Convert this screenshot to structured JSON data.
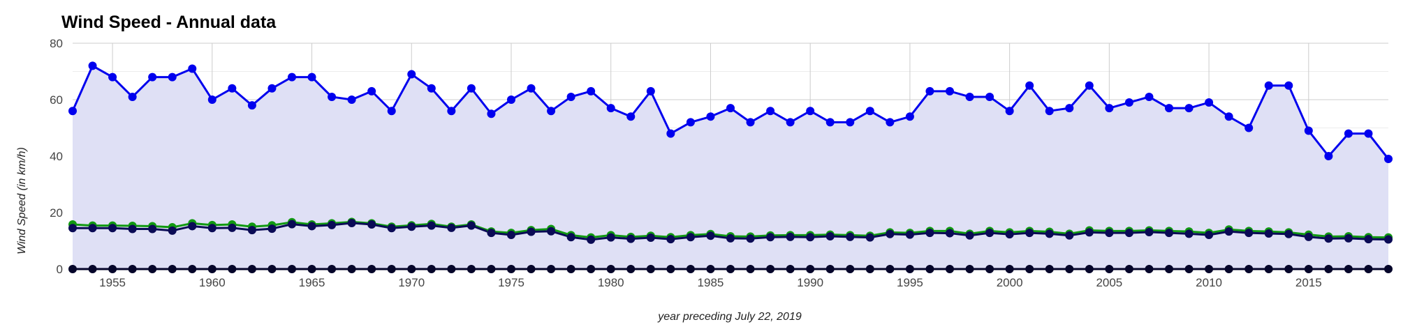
{
  "chart_data": {
    "type": "line",
    "title": "Wind Speed - Annual data",
    "xlabel": "year preceding July 22, 2019",
    "ylabel": "Wind Speed (in km/h)",
    "xlim": [
      1953,
      2019
    ],
    "ylim": [
      0,
      80
    ],
    "x_ticks": [
      "1955",
      "1960",
      "1965",
      "1970",
      "1975",
      "1980",
      "1985",
      "1990",
      "1995",
      "2000",
      "2005",
      "2010",
      "2015"
    ],
    "y_ticks": [
      "0",
      "20",
      "40",
      "60",
      "80"
    ],
    "grid": true,
    "legend": "none",
    "x": [
      1953,
      1954,
      1955,
      1956,
      1957,
      1958,
      1959,
      1960,
      1961,
      1962,
      1963,
      1964,
      1965,
      1966,
      1967,
      1968,
      1969,
      1970,
      1971,
      1972,
      1973,
      1974,
      1975,
      1976,
      1977,
      1978,
      1979,
      1980,
      1981,
      1982,
      1983,
      1984,
      1985,
      1986,
      1987,
      1988,
      1989,
      1990,
      1991,
      1992,
      1993,
      1994,
      1995,
      1996,
      1997,
      1998,
      1999,
      2000,
      2001,
      2002,
      2003,
      2004,
      2005,
      2006,
      2007,
      2008,
      2009,
      2010,
      2011,
      2012,
      2013,
      2014,
      2015,
      2016,
      2017,
      2018,
      2019
    ],
    "series": [
      {
        "color": "#0000ee",
        "area_fill": "#dfe0f5",
        "values": [
          56,
          72,
          68,
          61,
          68,
          68,
          71,
          60,
          64,
          58,
          64,
          68,
          68,
          61,
          60,
          63,
          56,
          69,
          64,
          56,
          64,
          55,
          60,
          64,
          56,
          61,
          63,
          57,
          54,
          63,
          48,
          52,
          54,
          57,
          52,
          56,
          52,
          56,
          52,
          52,
          56,
          52,
          54,
          63,
          63,
          61,
          61,
          56,
          65,
          56,
          57,
          65,
          57,
          59,
          61,
          57,
          57,
          59,
          54,
          50,
          65,
          65,
          49,
          40,
          48,
          48,
          39
        ]
      },
      {
        "color": "#119911",
        "values": [
          15.8,
          15.4,
          15.4,
          15.3,
          15.2,
          14.8,
          16.2,
          15.6,
          15.8,
          15.0,
          15.5,
          16.6,
          15.8,
          16.2,
          16.7,
          16.2,
          15.0,
          15.5,
          16.0,
          15.0,
          15.8,
          13.3,
          12.8,
          13.8,
          14.2,
          12.0,
          11.2,
          12.0,
          11.4,
          11.8,
          11.3,
          12.0,
          12.4,
          11.6,
          11.5,
          11.9,
          12.0,
          12.0,
          12.2,
          12.0,
          11.8,
          13.0,
          12.8,
          13.5,
          13.5,
          12.5,
          13.5,
          13.0,
          13.5,
          13.2,
          12.5,
          13.7,
          13.5,
          13.5,
          13.7,
          13.5,
          13.3,
          12.8,
          14.0,
          13.5,
          13.3,
          13.0,
          12.2,
          11.5,
          11.6,
          11.3,
          11.2
        ]
      },
      {
        "color": "#0a0a55",
        "values": [
          14.5,
          14.5,
          14.5,
          14.2,
          14.2,
          13.6,
          15.2,
          14.5,
          14.6,
          13.8,
          14.3,
          15.9,
          15.2,
          15.6,
          16.3,
          15.8,
          14.5,
          15.0,
          15.4,
          14.6,
          15.4,
          12.8,
          12.1,
          13.2,
          13.4,
          11.3,
          10.4,
          11.2,
          10.7,
          11.1,
          10.6,
          11.3,
          11.8,
          10.9,
          10.8,
          11.3,
          11.4,
          11.3,
          11.6,
          11.4,
          11.2,
          12.4,
          12.2,
          12.8,
          12.7,
          11.9,
          12.8,
          12.3,
          12.8,
          12.5,
          11.9,
          13.0,
          12.8,
          12.8,
          13.1,
          12.8,
          12.5,
          12.1,
          13.3,
          12.8,
          12.6,
          12.4,
          11.4,
          10.8,
          10.9,
          10.6,
          10.5
        ]
      },
      {
        "color": "#05052a",
        "values": [
          0,
          0,
          0,
          0,
          0,
          0,
          0,
          0,
          0,
          0,
          0,
          0,
          0,
          0,
          0,
          0,
          0,
          0,
          0,
          0,
          0,
          0,
          0,
          0,
          0,
          0,
          0,
          0,
          0,
          0,
          0,
          0,
          0,
          0,
          0,
          0,
          0,
          0,
          0,
          0,
          0,
          0,
          0,
          0,
          0,
          0,
          0,
          0,
          0,
          0,
          0,
          0,
          0,
          0,
          0,
          0,
          0,
          0,
          0,
          0,
          0,
          0,
          0,
          0,
          0,
          0,
          0
        ]
      }
    ]
  }
}
